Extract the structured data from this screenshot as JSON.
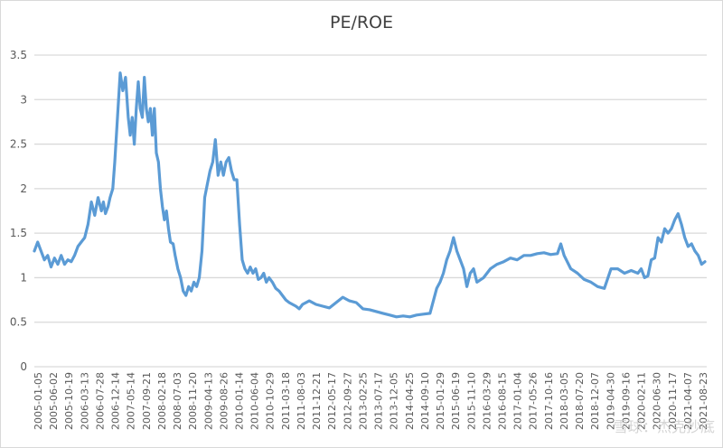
{
  "chart_data": {
    "type": "line",
    "title": "PE/ROE",
    "xlabel": "",
    "ylabel": "",
    "ylim": [
      0,
      3.5
    ],
    "yticks": [
      "0",
      "0.5",
      "1",
      "1.5",
      "2",
      "2.5",
      "3",
      "3.5"
    ],
    "grid": true,
    "legend": "none",
    "line_color": "#5B9BD5",
    "x_tick_labels": [
      "2005-01-05",
      "2005-06-02",
      "2005-10-19",
      "2006-03-13",
      "2006-07-28",
      "2006-12-14",
      "2007-05-14",
      "2007-09-21",
      "2008-02-18",
      "2008-07-03",
      "2008-11-20",
      "2009-04-13",
      "2009-08-26",
      "2010-01-14",
      "2010-06-04",
      "2010-10-29",
      "2011-03-18",
      "2011-08-03",
      "2011-12-21",
      "2012-05-17",
      "2012-09-27",
      "2013-02-25",
      "2013-07-17",
      "2013-12-05",
      "2014-04-25",
      "2014-09-10",
      "2015-01-29",
      "2015-06-19",
      "2015-11-10",
      "2016-03-29",
      "2016-08-15",
      "2017-01-04",
      "2017-05-26",
      "2017-10-16",
      "2018-03-05",
      "2018-07-20",
      "2018-12-07",
      "2019-04-30",
      "2019-09-16",
      "2020-02-11",
      "2020-06-30",
      "2020-11-17",
      "2021-04-07",
      "2021-08-23"
    ],
    "series": [
      {
        "name": "PE/ROE",
        "x_frac": [
          0,
          0.005,
          0.01,
          0.015,
          0.02,
          0.025,
          0.03,
          0.035,
          0.04,
          0.045,
          0.05,
          0.055,
          0.06,
          0.065,
          0.07,
          0.075,
          0.08,
          0.085,
          0.09,
          0.095,
          0.1,
          0.103,
          0.106,
          0.11,
          0.113,
          0.117,
          0.12,
          0.124,
          0.128,
          0.132,
          0.136,
          0.14,
          0.143,
          0.146,
          0.149,
          0.152,
          0.155,
          0.158,
          0.161,
          0.164,
          0.167,
          0.17,
          0.173,
          0.176,
          0.179,
          0.182,
          0.185,
          0.188,
          0.191,
          0.194,
          0.197,
          0.2,
          0.203,
          0.207,
          0.21,
          0.214,
          0.218,
          0.222,
          0.226,
          0.23,
          0.234,
          0.238,
          0.242,
          0.246,
          0.25,
          0.254,
          0.258,
          0.262,
          0.266,
          0.27,
          0.274,
          0.278,
          0.282,
          0.286,
          0.29,
          0.294,
          0.298,
          0.302,
          0.306,
          0.31,
          0.314,
          0.318,
          0.322,
          0.326,
          0.33,
          0.334,
          0.338,
          0.342,
          0.346,
          0.35,
          0.355,
          0.36,
          0.365,
          0.37,
          0.375,
          0.38,
          0.385,
          0.39,
          0.395,
          0.4,
          0.41,
          0.42,
          0.43,
          0.44,
          0.45,
          0.46,
          0.47,
          0.48,
          0.49,
          0.5,
          0.51,
          0.52,
          0.53,
          0.54,
          0.55,
          0.56,
          0.57,
          0.58,
          0.59,
          0.6,
          0.605,
          0.61,
          0.615,
          0.62,
          0.625,
          0.63,
          0.635,
          0.64,
          0.645,
          0.65,
          0.655,
          0.66,
          0.67,
          0.68,
          0.69,
          0.7,
          0.71,
          0.72,
          0.73,
          0.74,
          0.75,
          0.76,
          0.77,
          0.78,
          0.785,
          0.79,
          0.8,
          0.81,
          0.82,
          0.83,
          0.84,
          0.85,
          0.86,
          0.87,
          0.88,
          0.89,
          0.9,
          0.905,
          0.91,
          0.915,
          0.92,
          0.925,
          0.93,
          0.935,
          0.94,
          0.945,
          0.95,
          0.955,
          0.96,
          0.965,
          0.97,
          0.975,
          0.98,
          0.985,
          0.99,
          0.995,
          1.0
        ],
        "values": [
          1.3,
          1.4,
          1.3,
          1.2,
          1.25,
          1.12,
          1.22,
          1.15,
          1.25,
          1.15,
          1.2,
          1.18,
          1.25,
          1.35,
          1.4,
          1.45,
          1.6,
          1.85,
          1.7,
          1.9,
          1.75,
          1.85,
          1.72,
          1.8,
          1.9,
          2.0,
          2.3,
          2.8,
          3.3,
          3.1,
          3.25,
          2.8,
          2.6,
          2.8,
          2.5,
          2.9,
          3.2,
          2.9,
          2.8,
          3.25,
          2.9,
          2.75,
          2.9,
          2.6,
          2.9,
          2.4,
          2.3,
          2.0,
          1.8,
          1.65,
          1.75,
          1.55,
          1.4,
          1.38,
          1.25,
          1.1,
          1.0,
          0.85,
          0.8,
          0.9,
          0.85,
          0.95,
          0.9,
          1.0,
          1.3,
          1.9,
          2.05,
          2.2,
          2.3,
          2.55,
          2.15,
          2.3,
          2.15,
          2.3,
          2.35,
          2.2,
          2.1,
          2.1,
          1.6,
          1.2,
          1.1,
          1.05,
          1.12,
          1.05,
          1.1,
          0.98,
          1.0,
          1.05,
          0.95,
          1.0,
          0.95,
          0.88,
          0.85,
          0.8,
          0.75,
          0.72,
          0.7,
          0.68,
          0.65,
          0.7,
          0.74,
          0.7,
          0.68,
          0.66,
          0.72,
          0.78,
          0.74,
          0.72,
          0.65,
          0.64,
          0.62,
          0.6,
          0.58,
          0.56,
          0.57,
          0.56,
          0.58,
          0.59,
          0.6,
          0.88,
          0.95,
          1.05,
          1.2,
          1.3,
          1.45,
          1.3,
          1.2,
          1.1,
          0.9,
          1.05,
          1.1,
          0.95,
          1.0,
          1.1,
          1.15,
          1.18,
          1.22,
          1.2,
          1.25,
          1.25,
          1.27,
          1.28,
          1.26,
          1.27,
          1.38,
          1.25,
          1.1,
          1.05,
          0.98,
          0.95,
          0.9,
          0.88,
          1.1,
          1.1,
          1.05,
          1.08,
          1.05,
          1.1,
          1.0,
          1.02,
          1.2,
          1.22,
          1.45,
          1.4,
          1.55,
          1.5,
          1.55,
          1.65,
          1.72,
          1.6,
          1.45,
          1.35,
          1.38,
          1.3,
          1.25,
          1.15,
          1.18,
          1.2
        ]
      }
    ]
  },
  "watermark": "雪球：杰克抄底"
}
